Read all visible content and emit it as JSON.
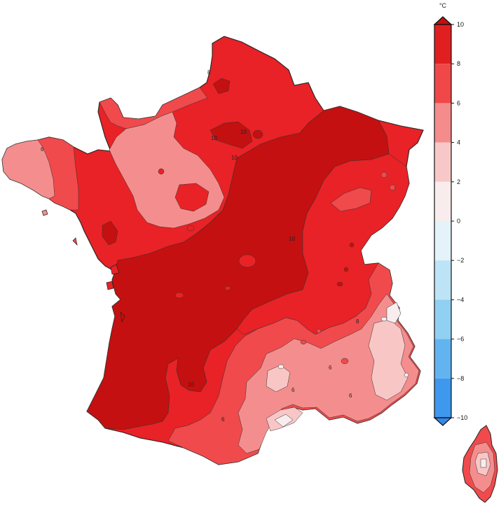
{
  "colorbar": {
    "unit": "°C",
    "ticks": [
      {
        "value": 10,
        "label": "10"
      },
      {
        "value": 8,
        "label": "8"
      },
      {
        "value": 6,
        "label": "6"
      },
      {
        "value": 4,
        "label": "4"
      },
      {
        "value": 2,
        "label": "2"
      },
      {
        "value": 0,
        "label": "0"
      },
      {
        "value": -2,
        "label": "−2"
      },
      {
        "value": -4,
        "label": "−4"
      },
      {
        "value": -6,
        "label": "−6"
      },
      {
        "value": -8,
        "label": "−8"
      },
      {
        "value": -10,
        "label": "−10"
      }
    ],
    "bands": [
      {
        "from": 8,
        "to": 10,
        "color": "#e02020"
      },
      {
        "from": 6,
        "to": 8,
        "color": "#f04848"
      },
      {
        "from": 4,
        "to": 6,
        "color": "#f48c8c"
      },
      {
        "from": 2,
        "to": 4,
        "color": "#f8c8c8"
      },
      {
        "from": 0,
        "to": 2,
        "color": "#f8eced"
      },
      {
        "from": -2,
        "to": 0,
        "color": "#e4f2fa"
      },
      {
        "from": -4,
        "to": -2,
        "color": "#bde4f6"
      },
      {
        "from": -6,
        "to": -4,
        "color": "#90d0f2"
      },
      {
        "from": -8,
        "to": -6,
        "color": "#62b4f0"
      },
      {
        "from": -10,
        "to": -8,
        "color": "#3e98ee"
      }
    ],
    "over_color": "#c01010",
    "under_color": "#3888e8"
  },
  "map": {
    "levels": {
      "above_10": "#c41010",
      "8_10": "#e82226",
      "6_8": "#f04a4c",
      "4_6": "#f48e8e",
      "2_4": "#f9c6c6",
      "0_2": "#f7ecee"
    },
    "contour_labels": [
      "10",
      "10",
      "10",
      "10",
      "10",
      "8",
      "8",
      "6",
      "6",
      "6",
      "6",
      "6"
    ]
  }
}
